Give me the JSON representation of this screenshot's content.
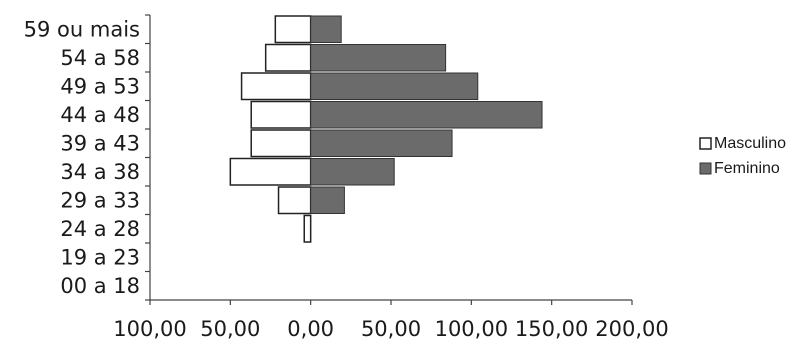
{
  "chart_data": {
    "type": "bar",
    "orientation": "horizontal",
    "categories": [
      "00 a 18",
      "19 a 23",
      "24 a 28",
      "29 a 33",
      "34 a 38",
      "39 a 43",
      "44 a 48",
      "49 a 53",
      "54 a 58",
      "59 ou mais"
    ],
    "series": [
      {
        "name": "Masculino",
        "values": [
          0,
          0,
          4,
          20,
          50,
          37,
          37,
          43,
          28,
          22
        ],
        "color": "#ffffff"
      },
      {
        "name": "Feminino",
        "values": [
          0,
          0,
          0,
          21,
          52,
          88,
          144,
          104,
          84,
          19
        ],
        "color": "#6b6b6b"
      }
    ],
    "masculino_direction": "left",
    "xlim": [
      -100,
      200
    ],
    "xticks": [
      -100,
      -50,
      0,
      50,
      100,
      150,
      200
    ],
    "xtick_labels": [
      "100,00",
      "50,00",
      "0,00",
      "50,00",
      "100,00",
      "150,00",
      "200,00"
    ],
    "title": "",
    "xlabel": "",
    "ylabel": "",
    "grid": false,
    "legend_position": "right"
  }
}
